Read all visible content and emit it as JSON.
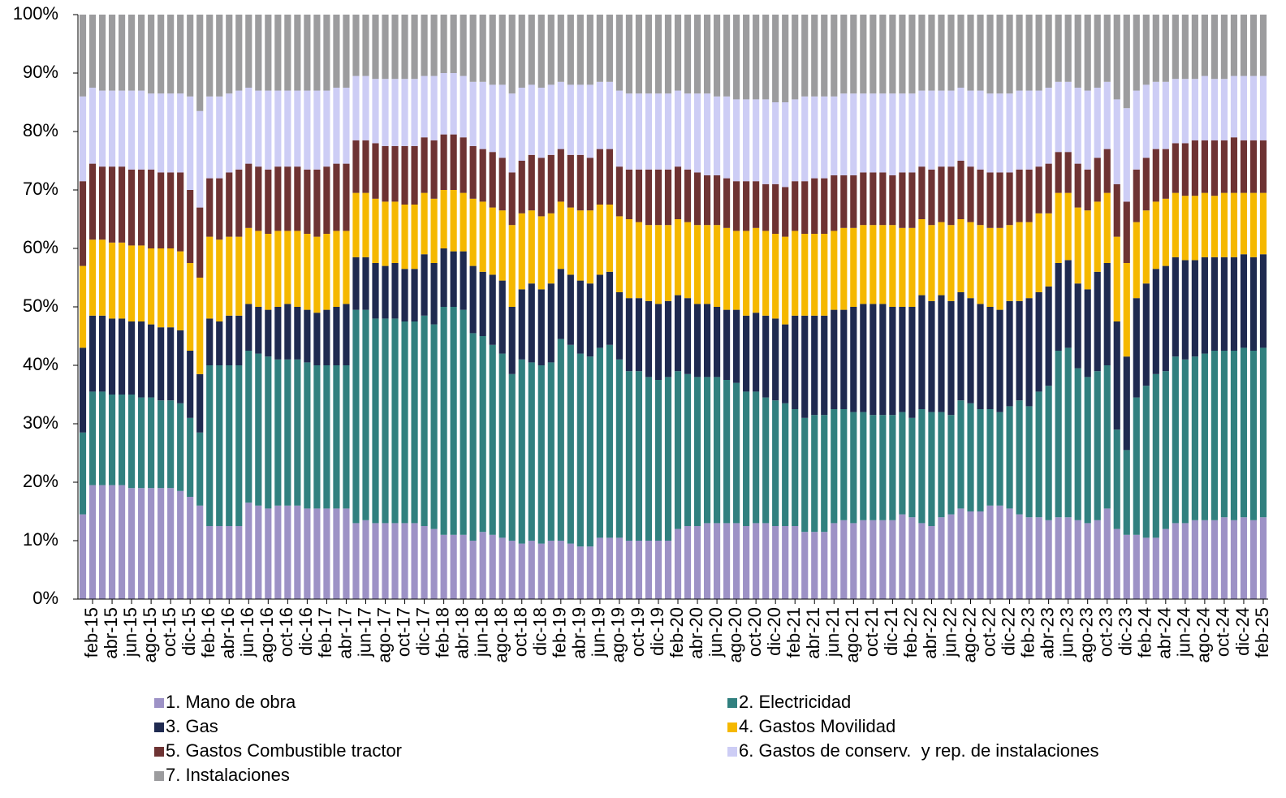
{
  "chart_data": {
    "type": "stacked_bar",
    "categories": [
      null,
      "feb-15",
      null,
      "abr-15",
      null,
      "jun-15",
      null,
      "ago-15",
      null,
      "oct-15",
      null,
      "dic-15",
      null,
      "feb-16",
      null,
      "abr-16",
      null,
      "jun-16",
      null,
      "ago-16",
      null,
      "oct-16",
      null,
      "dic-16",
      null,
      "feb-17",
      null,
      "abr-17",
      null,
      "jun-17",
      null,
      "ago-17",
      null,
      "oct-17",
      null,
      "dic-17",
      null,
      "feb-18",
      null,
      "abr-18",
      null,
      "jun-18",
      null,
      "ago-18",
      null,
      "oct-18",
      null,
      "dic-18",
      null,
      "feb-19",
      null,
      "abr-19",
      null,
      "jun-19",
      null,
      "ago-19",
      null,
      "oct-19",
      null,
      "dic-19",
      null,
      "feb-20",
      null,
      "abr-20",
      null,
      "jun-20",
      null,
      "ago-20",
      null,
      "oct-20",
      null,
      "dic-20",
      null,
      "feb-21",
      null,
      "abr-21",
      null,
      "jun-21",
      null,
      "ago-21",
      null,
      "oct-21",
      null,
      "dic-21",
      null,
      "feb-22",
      null,
      "abr-22",
      null,
      "jun-22",
      null,
      "ago-22",
      null,
      "oct-22",
      null,
      "dic-22",
      null,
      "feb-23",
      null,
      "abr-23",
      null,
      "jun-23",
      null,
      "ago-23",
      null,
      "oct-23",
      null,
      "dic-23",
      null,
      "feb-24",
      null,
      "abr-24",
      null,
      "jun-24",
      null,
      "ago-24",
      null,
      "oct-24",
      null,
      "dic-24",
      null,
      "feb-25"
    ],
    "series": [
      {
        "name": "1. Mano de obra",
        "color": "#9d92c6",
        "values": [
          14.5,
          19.5,
          19.5,
          19.5,
          19.5,
          19,
          19,
          19,
          19,
          19,
          18.5,
          17.5,
          16,
          12.5,
          12.5,
          12.5,
          12.5,
          16.5,
          16,
          15.5,
          16,
          16,
          16,
          15.5,
          15.5,
          15.5,
          15.5,
          15.5,
          13,
          13.5,
          13,
          13,
          13,
          13,
          13,
          12.5,
          12,
          11,
          11,
          11,
          10,
          11.5,
          11,
          10.5,
          10,
          9.5,
          10,
          9.5,
          10,
          10,
          9.5,
          9,
          9,
          10.5,
          10.5,
          10.5,
          10,
          10,
          10,
          10,
          10,
          12,
          12.5,
          12.5,
          13,
          13,
          13,
          13,
          12.5,
          13,
          13,
          12.5,
          12.5,
          12.5,
          11.5,
          11.5,
          11.5,
          13,
          13.5,
          13,
          13.5,
          13.5,
          13.5,
          13.5,
          14.5,
          14,
          13,
          12.5,
          14,
          14.5,
          15.5,
          15,
          15,
          16,
          16,
          15.5,
          14.5,
          14,
          14,
          13.5,
          14,
          14,
          13.5,
          13,
          13.5,
          15.5,
          12,
          11,
          11,
          10.5,
          10.5,
          12,
          13,
          13,
          13.5,
          13.5,
          13.5,
          14,
          13.5,
          14,
          13.5,
          14
        ]
      },
      {
        "name": "2. Electricidad",
        "color": "#31807f",
        "values": [
          14,
          16,
          16,
          15.5,
          15.5,
          16,
          15.5,
          15.5,
          15,
          15,
          15,
          13.5,
          12.5,
          27.5,
          27.5,
          27.5,
          27.5,
          26,
          26,
          26,
          25,
          25,
          25,
          25,
          24.5,
          24.5,
          24.5,
          24.5,
          36.5,
          36,
          35,
          35,
          35,
          34.5,
          34.5,
          36,
          35,
          39,
          39,
          38.5,
          35.5,
          33.5,
          32.5,
          31.5,
          28.5,
          31.5,
          30.5,
          30.5,
          30.5,
          34.5,
          34,
          33,
          32.5,
          32.5,
          33,
          30.5,
          29,
          29,
          28,
          27.5,
          28,
          27,
          26,
          25.5,
          25,
          25,
          24.5,
          24,
          23,
          22.5,
          21.5,
          21.5,
          21,
          20,
          19.5,
          20,
          20,
          19.5,
          19,
          19,
          18.5,
          18,
          18,
          18,
          17.5,
          17,
          19.5,
          19.5,
          18,
          17,
          18.5,
          18.5,
          17.5,
          16.5,
          16,
          17.5,
          19.5,
          19,
          21.5,
          23,
          28.5,
          29,
          26,
          25,
          25.5,
          24.5,
          17,
          14.5,
          23.5,
          26,
          28,
          27,
          28.5,
          28,
          28,
          28.5,
          29,
          28.5,
          29,
          29,
          29,
          29
        ]
      },
      {
        "name": "3. Gas",
        "color": "#1f2a50",
        "values": [
          14.5,
          13,
          13,
          13,
          13,
          12.5,
          13,
          12.5,
          12.5,
          12.5,
          12.5,
          11.5,
          10,
          8,
          7.5,
          8.5,
          8.5,
          8,
          8,
          8,
          9,
          9.5,
          9,
          9,
          9,
          9.5,
          10,
          10.5,
          9,
          9,
          9.5,
          9,
          9.5,
          9,
          9,
          10.5,
          10.5,
          10,
          9.5,
          10,
          11.5,
          11,
          12,
          12.5,
          11.5,
          12,
          13.5,
          13,
          13.5,
          12,
          12,
          12.5,
          12.5,
          12.5,
          12.5,
          11.5,
          12.5,
          12.5,
          13,
          13,
          13,
          13,
          13,
          12.5,
          12.5,
          12,
          12,
          12.5,
          13,
          13.5,
          14,
          14,
          13.5,
          16,
          17.5,
          17,
          17,
          17,
          17,
          18,
          18.5,
          19,
          19,
          18.5,
          18,
          19,
          19.5,
          19,
          20,
          19.5,
          18.5,
          18,
          18,
          17.5,
          17.5,
          18,
          17,
          18.5,
          17,
          17,
          15,
          15,
          14.5,
          15,
          17,
          17.5,
          18.5,
          16,
          17,
          17.5,
          18,
          18,
          17,
          17,
          16.5,
          16.5,
          16,
          16,
          16,
          16,
          16,
          16
        ]
      },
      {
        "name": "4. Gastos Movilidad",
        "color": "#f5b800",
        "values": [
          14,
          13,
          13,
          13,
          13,
          13,
          13,
          13,
          13.5,
          13.5,
          13.5,
          15,
          16.5,
          14,
          14,
          13.5,
          13.5,
          13,
          13,
          13,
          13,
          12.5,
          13,
          13,
          13,
          13,
          13,
          12.5,
          11,
          11,
          11,
          11,
          10.5,
          11,
          11,
          10.5,
          11,
          10,
          10.5,
          10,
          11.5,
          12,
          11.5,
          12,
          14,
          13,
          12.5,
          12.5,
          12,
          11.5,
          11.5,
          12,
          12.5,
          12,
          11.5,
          13,
          13.5,
          13,
          13,
          13.5,
          13,
          13,
          13,
          13.5,
          13.5,
          14,
          14,
          13.5,
          14.5,
          14.5,
          14.5,
          14.5,
          15,
          14.5,
          14,
          14,
          14,
          13.5,
          14,
          13.5,
          13.5,
          13.5,
          13.5,
          14,
          13.5,
          13.5,
          13,
          13,
          12.5,
          13,
          12.5,
          13,
          13.5,
          13.5,
          14,
          13,
          13.5,
          13,
          13.5,
          12.5,
          12,
          11.5,
          13,
          13.5,
          12,
          12,
          14.5,
          16,
          13,
          12.5,
          11.5,
          11.5,
          11,
          11,
          11,
          11,
          10.5,
          11,
          11,
          10.5,
          11,
          10.5
        ]
      },
      {
        "name": "5. Gastos Combustible tractor",
        "color": "#6e3333",
        "values": [
          14.5,
          13,
          12.5,
          13,
          13,
          13,
          13,
          13.5,
          13,
          13,
          13.5,
          12.5,
          12,
          10,
          10.5,
          11,
          11.5,
          11,
          11,
          11,
          11,
          11,
          11,
          11,
          11.5,
          11.5,
          11.5,
          11.5,
          9,
          9,
          9.5,
          9.5,
          9.5,
          10,
          10,
          9.5,
          10,
          9.5,
          9.5,
          9.5,
          9,
          9,
          9.5,
          9,
          9,
          9,
          9.5,
          10,
          10,
          9,
          9,
          9.5,
          9,
          9.5,
          9.5,
          8.5,
          8.5,
          9,
          9.5,
          9.5,
          9.5,
          9,
          9,
          9,
          8.5,
          8.5,
          8.5,
          8.5,
          8.5,
          8,
          8,
          8.5,
          8.5,
          8.5,
          9,
          9.5,
          9.5,
          9.5,
          9,
          9,
          9,
          9,
          9,
          8.5,
          9.5,
          9.5,
          9,
          9.5,
          9.5,
          10,
          10,
          9.5,
          9.5,
          9.5,
          9.5,
          9,
          9,
          9,
          8,
          8.5,
          7,
          7,
          7.5,
          7,
          7.5,
          7.5,
          9,
          10.5,
          9,
          9,
          9,
          8.5,
          8.5,
          9,
          9.5,
          9,
          9.5,
          9,
          9.5,
          9,
          9,
          9
        ]
      },
      {
        "name": "6. Gastos de conserv.  y rep. de instalaciones",
        "color": "#cdcdf5",
        "values": [
          14.5,
          13,
          13,
          13,
          13,
          13.5,
          13.5,
          13,
          13.5,
          13.5,
          13.5,
          16,
          16.5,
          14,
          14,
          13.5,
          13.5,
          13,
          13,
          13.5,
          13,
          13,
          13,
          13.5,
          13.5,
          13,
          13,
          13,
          11,
          11,
          11,
          11.5,
          11.5,
          11.5,
          11.5,
          10.5,
          11,
          10.5,
          10.5,
          10.5,
          11,
          11.5,
          11.5,
          12.5,
          13.5,
          12.5,
          12,
          12,
          12,
          11.5,
          12,
          12,
          12.5,
          11.5,
          11.5,
          13,
          13,
          13,
          13,
          13,
          13,
          13,
          13,
          13.5,
          14,
          13.5,
          14,
          14,
          14,
          14,
          14.5,
          14,
          14.5,
          14,
          14.5,
          14,
          14,
          13.5,
          14,
          14,
          13.5,
          13.5,
          13.5,
          14,
          13.5,
          13.5,
          13,
          13.5,
          13,
          13,
          12.5,
          13,
          13.5,
          13.5,
          13.5,
          13.5,
          13.5,
          13.5,
          13,
          13,
          12,
          12,
          13,
          13.5,
          12,
          11.5,
          14.5,
          16,
          13.5,
          12.5,
          11.5,
          11.5,
          11,
          11,
          10.5,
          11,
          10.5,
          10.5,
          10.5,
          11,
          11,
          11
        ]
      },
      {
        "name": "7. Instalaciones",
        "color": "#9c9c9e",
        "values": [
          14,
          12.5,
          13,
          13,
          13,
          13,
          13,
          13.5,
          13.5,
          13.5,
          13.5,
          14,
          16.5,
          14,
          14,
          13.5,
          13,
          12.5,
          13,
          13,
          13,
          13,
          13,
          13,
          13,
          13,
          12.5,
          12.5,
          10.5,
          10.5,
          11,
          11,
          11,
          11,
          11,
          10.5,
          10.5,
          10,
          10,
          10.5,
          11.5,
          11.5,
          12,
          12,
          13.5,
          12.5,
          12,
          12.5,
          12,
          11.5,
          12,
          12,
          12,
          11.5,
          11.5,
          13,
          13.5,
          13.5,
          13.5,
          13.5,
          13.5,
          13,
          13.5,
          13.5,
          13.5,
          14,
          14,
          14.5,
          14.5,
          14.5,
          14.5,
          15,
          15,
          14.5,
          14,
          14,
          14,
          14,
          13.5,
          13.5,
          13.5,
          13.5,
          13.5,
          13.5,
          13.5,
          13.5,
          13,
          13,
          13,
          13,
          12.5,
          13,
          13,
          13.5,
          13.5,
          13.5,
          13,
          13,
          13,
          12.5,
          11.5,
          11.5,
          12.5,
          13,
          12.5,
          11.5,
          14.5,
          16,
          13,
          12,
          11.5,
          11.5,
          11,
          11,
          11,
          10.5,
          11,
          11,
          10.5,
          10.5,
          10.5,
          10.5
        ]
      }
    ],
    "ylim": [
      0,
      100
    ],
    "yticks": [
      {
        "value": 0,
        "label": "0%"
      },
      {
        "value": 10,
        "label": "10%"
      },
      {
        "value": 20,
        "label": "20%"
      },
      {
        "value": 30,
        "label": "30%"
      },
      {
        "value": 40,
        "label": "40%"
      },
      {
        "value": 50,
        "label": "50%"
      },
      {
        "value": 60,
        "label": "60%"
      },
      {
        "value": 70,
        "label": "70%"
      },
      {
        "value": 80,
        "label": "80%"
      },
      {
        "value": 90,
        "label": "90%"
      },
      {
        "value": 100,
        "label": "100%"
      }
    ],
    "grid": false,
    "legend": "bottom"
  }
}
